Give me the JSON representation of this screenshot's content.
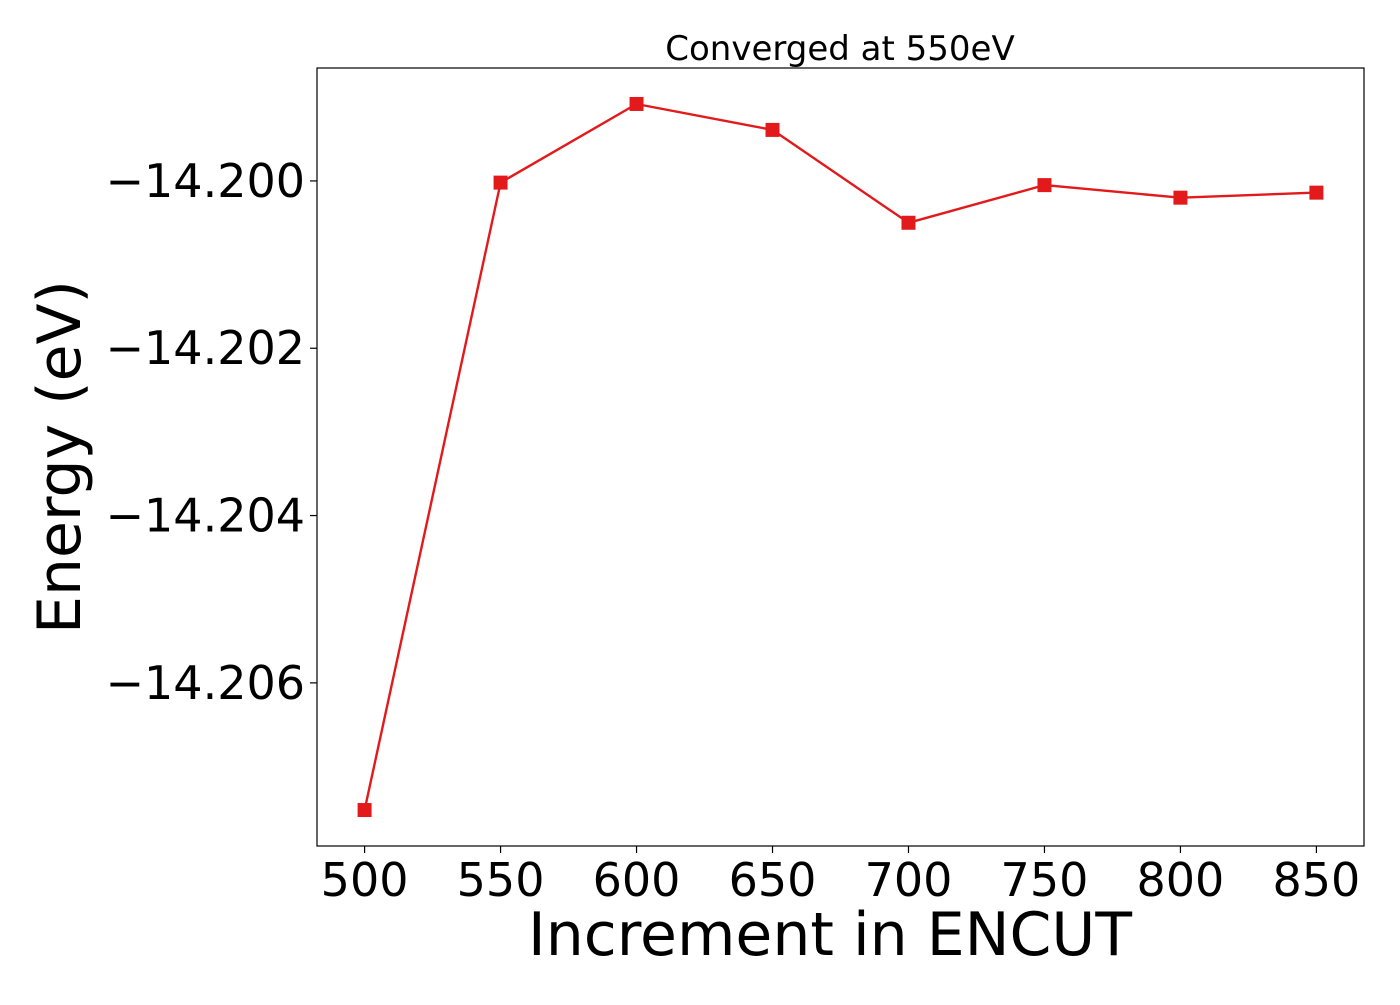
{
  "chart_data": {
    "type": "line",
    "title": "Converged at 550eV",
    "xlabel": "Increment in ENCUT",
    "ylabel": "Energy (eV)",
    "x": [
      500,
      550,
      600,
      650,
      700,
      750,
      800,
      850
    ],
    "series": [
      {
        "values": [
          -14.20752,
          -14.20002,
          -14.19908,
          -14.19939,
          -14.2005,
          -14.20005,
          -14.2002,
          -14.20014
        ],
        "color": "#e31a1c",
        "marker": "square"
      }
    ],
    "xticks": [
      500,
      550,
      600,
      650,
      700,
      750,
      800,
      850
    ],
    "xtick_labels": [
      "500",
      "550",
      "600",
      "650",
      "700",
      "750",
      "800",
      "850"
    ],
    "yticks": [
      -14.2,
      -14.202,
      -14.204,
      -14.206
    ],
    "ytick_labels": [
      "−14.200",
      "−14.202",
      "−14.204",
      "−14.206"
    ],
    "xlim": [
      482.5,
      867.5
    ],
    "ylim": [
      -14.20795,
      -14.19865
    ],
    "grid": false,
    "legend": "none"
  }
}
